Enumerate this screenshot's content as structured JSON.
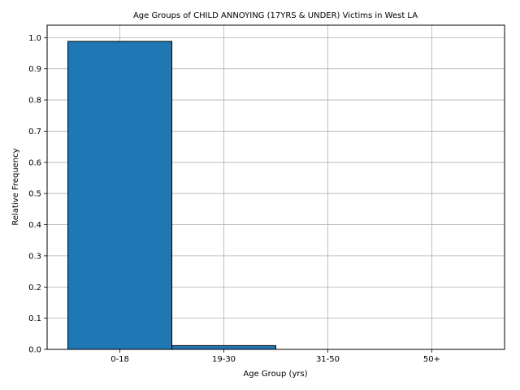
{
  "chart_data": {
    "type": "bar",
    "title": "Age Groups of CHILD ANNOYING (17YRS & UNDER) Victims in West LA",
    "xlabel": "Age Group (yrs)",
    "ylabel": "Relative Frequency",
    "categories": [
      "0-18",
      "19-30",
      "31-50",
      "50+"
    ],
    "values": [
      0.988,
      0.012,
      0.0,
      0.0
    ],
    "yticks": [
      "0.0",
      "0.1",
      "0.2",
      "0.3",
      "0.4",
      "0.5",
      "0.6",
      "0.7",
      "0.8",
      "0.9",
      "1.0"
    ],
    "ylim": [
      0,
      1.04
    ],
    "grid": true,
    "colors": {
      "bar": "#1f77b4",
      "edge": "#000000",
      "grid": "#b0b0b0"
    }
  }
}
